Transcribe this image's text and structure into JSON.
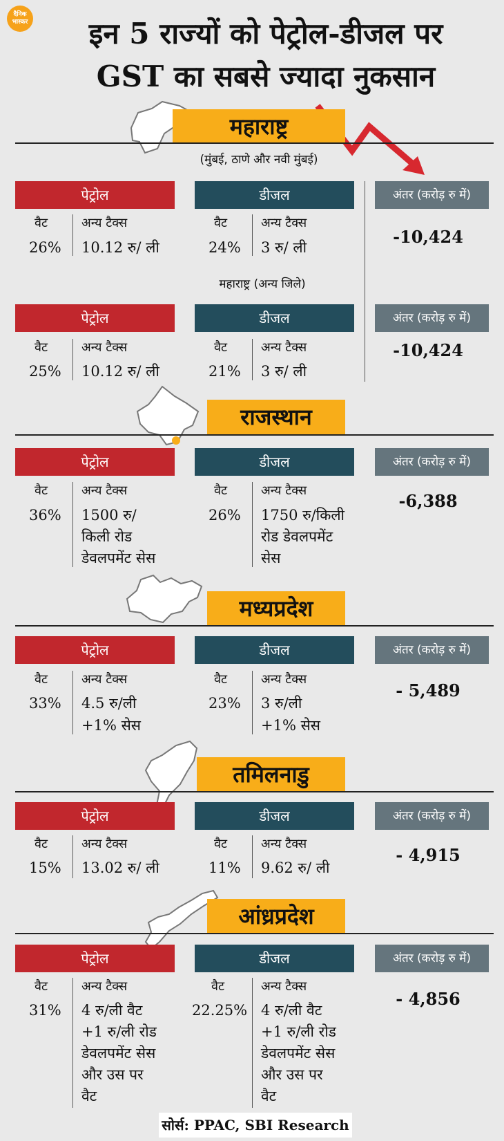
{
  "brand": {
    "line1": "दैनिक",
    "line2": "भास्कर"
  },
  "title": {
    "line1": "इन 5 राज्यों को पेट्रोल-डीजल पर",
    "line2": "GST का सबसे ज्यादा नुकसान"
  },
  "headers": {
    "petrol": "पेट्रोल",
    "diesel": "डीजल",
    "diff": "अंतर (करोड़ रु में)",
    "vat": "वैट",
    "other_tax": "अन्य टैक्स"
  },
  "colors": {
    "accent": "#f8ad19",
    "petrol": "#c1272d",
    "diesel": "#234d5c",
    "diff": "#65757d",
    "arrow": "#d7282f"
  },
  "maharashtra": {
    "name": "महाराष्ट्र",
    "note1": "(मुंबई, ठाणे और नवी मुंबई)",
    "petrol_vat": "26%",
    "petrol_other": "10.12 रु/ ली",
    "diesel_vat": "24%",
    "diesel_other": "3 रु/ ली",
    "diff": "-10,424",
    "note2": "महाराष्ट्र (अन्य जिले)",
    "petrol_vat2": "25%",
    "petrol_other2": "10.12 रु/ ली",
    "diesel_vat2": "21%",
    "diesel_other2": "3 रु/ ली",
    "diff2": "-10,424"
  },
  "rajasthan": {
    "name": "राजस्थान",
    "petrol_vat": "36%",
    "petrol_other": [
      "1500 रु/",
      "किली रोड",
      "डेवलपमेंट सेस"
    ],
    "diesel_vat": "26%",
    "diesel_other": [
      "1750 रु/किली",
      "रोड डेवलपमेंट",
      "सेस"
    ],
    "diff": "-6,388"
  },
  "mp": {
    "name": "मध्यप्रदेश",
    "petrol_vat": "33%",
    "petrol_other": [
      "4.5 रु/ली",
      "+1% सेस"
    ],
    "diesel_vat": "23%",
    "diesel_other": [
      "3 रु/ली",
      "+1% सेस"
    ],
    "diff": "- 5,489"
  },
  "tn": {
    "name": "तमिलनाडु",
    "petrol_vat": "15%",
    "petrol_other": "13.02 रु/ ली",
    "diesel_vat": "11%",
    "diesel_other": "9.62 रु/ ली",
    "diff": "- 4,915"
  },
  "ap": {
    "name": "आंध्रप्रदेश",
    "petrol_vat": "31%",
    "petrol_other": [
      "4 रु/ली वैट",
      "+1 रु/ली रोड",
      "डेवलपमेंट सेस",
      "और उस पर",
      "वैट"
    ],
    "diesel_vat": "22.25%",
    "diesel_other": [
      "4 रु/ली वैट",
      "+1 रु/ली रोड",
      "डेवलपमेंट सेस",
      "और उस पर",
      "वैट"
    ],
    "diff": "- 4,856"
  },
  "source": "सोर्स: PPAC, SBI Research"
}
